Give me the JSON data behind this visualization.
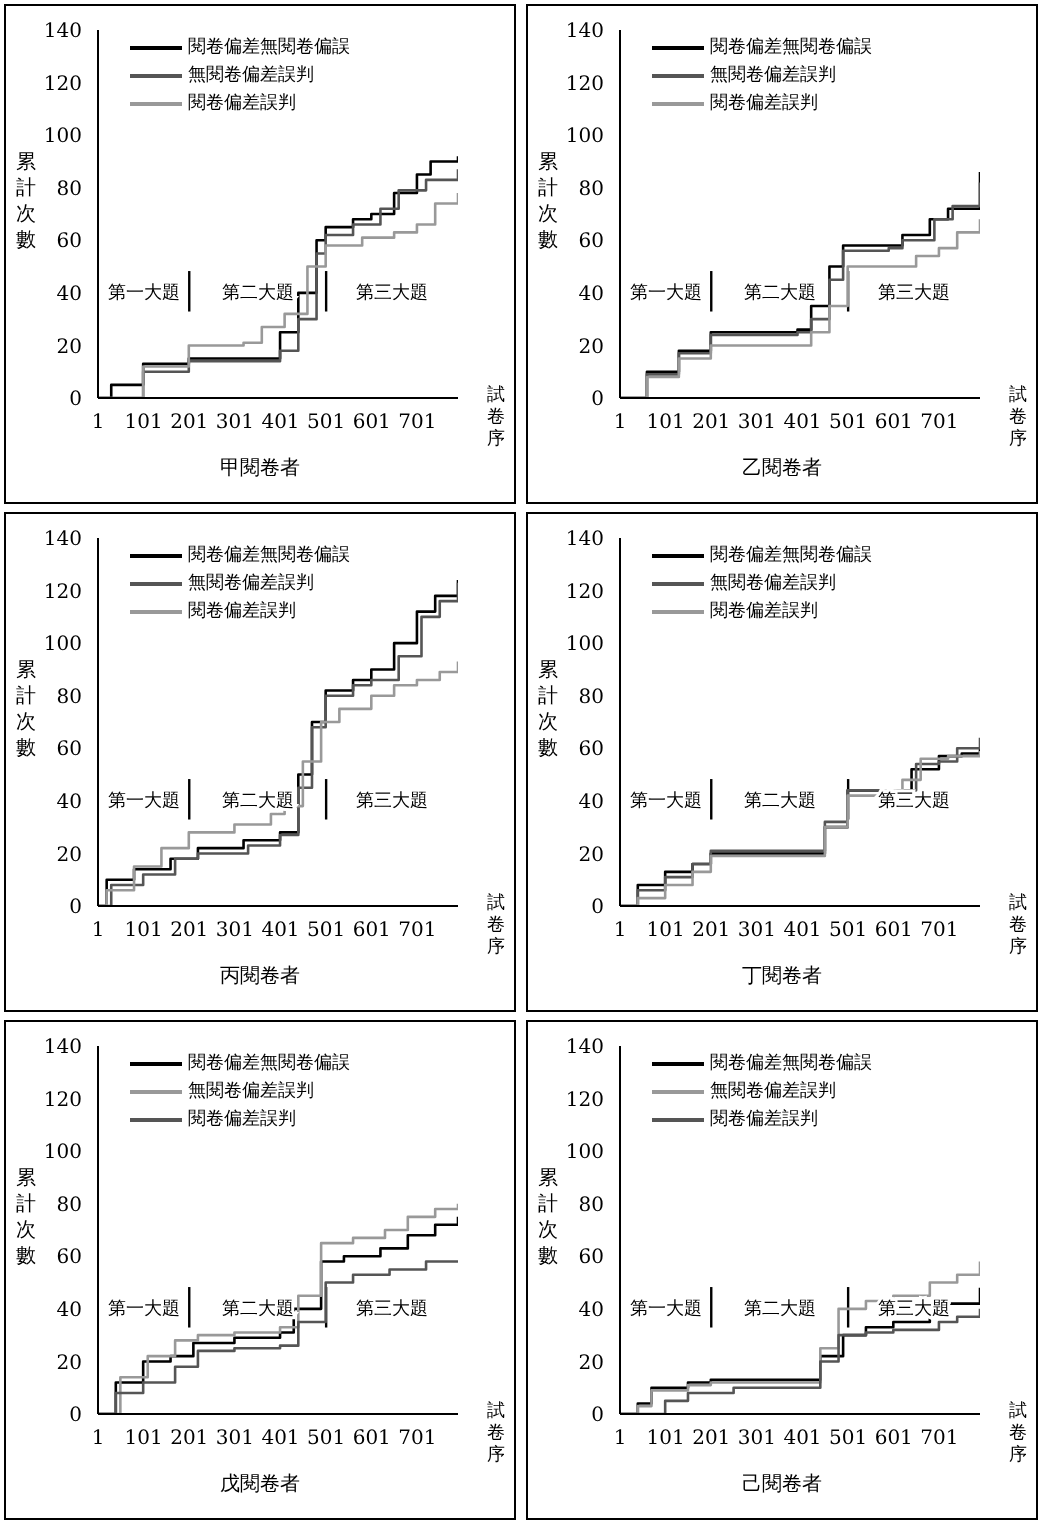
{
  "chart_data": [
    {
      "type": "step",
      "title": "甲閱卷者",
      "xlabel": "試卷序",
      "ylabel": "累計次數",
      "xlim": [
        1,
        790
      ],
      "xticks": [
        1,
        101,
        201,
        301,
        401,
        501,
        601,
        701
      ],
      "ylim": [
        0,
        140
      ],
      "yticks": [
        0,
        20,
        40,
        60,
        80,
        100,
        120,
        140
      ],
      "legend": "top left",
      "marker": "none",
      "line_style": "solid",
      "annotations": [
        "第一大題",
        "第二大題",
        "第三大題"
      ],
      "ref_lines": [
        {
          "axis": "x",
          "value": 201,
          "color": "#000000"
        },
        {
          "axis": "x",
          "value": 501,
          "color": "#000000"
        }
      ],
      "series": [
        {
          "name": "閱卷偏差無閱卷偏誤",
          "color": "#000000",
          "x": [
            1,
            30,
            100,
            200,
            320,
            400,
            440,
            480,
            500,
            560,
            600,
            650,
            700,
            730,
            790
          ],
          "values": [
            0,
            5,
            13,
            15,
            15,
            25,
            40,
            60,
            65,
            68,
            70,
            78,
            85,
            90,
            92
          ]
        },
        {
          "name": "無閱卷偏差誤判",
          "color": "#555555",
          "x": [
            1,
            100,
            200,
            300,
            400,
            440,
            480,
            500,
            560,
            620,
            660,
            720,
            790
          ],
          "values": [
            0,
            10,
            14,
            14,
            18,
            30,
            55,
            62,
            66,
            72,
            79,
            83,
            87
          ]
        },
        {
          "name": "閱卷偏差誤判",
          "color": "#999999",
          "x": [
            1,
            100,
            200,
            320,
            360,
            410,
            460,
            500,
            580,
            650,
            700,
            740,
            790
          ],
          "values": [
            0,
            12,
            20,
            21,
            27,
            32,
            50,
            58,
            61,
            63,
            66,
            74,
            78
          ]
        }
      ]
    },
    {
      "type": "step",
      "title": "乙閱卷者",
      "xlabel": "試卷序",
      "ylabel": "累計次數",
      "xlim": [
        1,
        790
      ],
      "xticks": [
        1,
        101,
        201,
        301,
        401,
        501,
        601,
        701
      ],
      "ylim": [
        0,
        140
      ],
      "yticks": [
        0,
        20,
        40,
        60,
        80,
        100,
        120,
        140
      ],
      "legend": "top left",
      "marker": "none",
      "line_style": "solid",
      "annotations": [
        "第一大題",
        "第二大題",
        "第三大題"
      ],
      "ref_lines": [
        {
          "axis": "x",
          "value": 201,
          "color": "#000000"
        },
        {
          "axis": "x",
          "value": 501,
          "color": "#000000"
        }
      ],
      "series": [
        {
          "name": "閱卷偏差無閱卷偏誤",
          "color": "#000000",
          "x": [
            1,
            60,
            130,
            200,
            300,
            390,
            420,
            460,
            490,
            590,
            620,
            680,
            720,
            790
          ],
          "values": [
            0,
            10,
            18,
            25,
            25,
            26,
            35,
            50,
            58,
            58,
            62,
            68,
            72,
            86
          ]
        },
        {
          "name": "無閱卷偏差誤判",
          "color": "#555555",
          "x": [
            1,
            60,
            130,
            200,
            300,
            390,
            420,
            460,
            490,
            590,
            620,
            690,
            730,
            790
          ],
          "values": [
            0,
            9,
            17,
            24,
            24,
            25,
            30,
            45,
            56,
            57,
            60,
            68,
            73,
            82
          ]
        },
        {
          "name": "閱卷偏差誤判",
          "color": "#999999",
          "x": [
            1,
            60,
            130,
            200,
            300,
            390,
            420,
            460,
            500,
            600,
            650,
            700,
            740,
            790
          ],
          "values": [
            0,
            8,
            15,
            20,
            20,
            20,
            25,
            35,
            50,
            50,
            54,
            57,
            63,
            68
          ]
        }
      ]
    },
    {
      "type": "step",
      "title": "丙閱卷者",
      "xlabel": "試卷序",
      "ylabel": "累計次數",
      "xlim": [
        1,
        790
      ],
      "xticks": [
        1,
        101,
        201,
        301,
        401,
        501,
        601,
        701
      ],
      "ylim": [
        0,
        140
      ],
      "yticks": [
        0,
        20,
        40,
        60,
        80,
        100,
        120,
        140
      ],
      "legend": "top left",
      "marker": "none",
      "line_style": "solid",
      "annotations": [
        "第一大題",
        "第二大題",
        "第三大題"
      ],
      "ref_lines": [
        {
          "axis": "x",
          "value": 201,
          "color": "#000000"
        },
        {
          "axis": "x",
          "value": 501,
          "color": "#000000"
        }
      ],
      "series": [
        {
          "name": "閱卷偏差無閱卷偏誤",
          "color": "#000000",
          "x": [
            1,
            20,
            80,
            160,
            220,
            320,
            400,
            440,
            470,
            500,
            560,
            600,
            650,
            700,
            740,
            790
          ],
          "values": [
            0,
            10,
            14,
            18,
            22,
            25,
            28,
            50,
            70,
            82,
            86,
            90,
            100,
            112,
            118,
            124
          ]
        },
        {
          "name": "無閱卷偏差誤判",
          "color": "#555555",
          "x": [
            1,
            30,
            100,
            170,
            220,
            330,
            400,
            440,
            470,
            500,
            560,
            600,
            660,
            710,
            750,
            790
          ],
          "values": [
            0,
            8,
            12,
            18,
            20,
            23,
            27,
            45,
            68,
            80,
            84,
            86,
            95,
            110,
            116,
            123
          ]
        },
        {
          "name": "閱卷偏差誤判",
          "color": "#999999",
          "x": [
            1,
            20,
            80,
            140,
            200,
            300,
            380,
            410,
            450,
            490,
            530,
            600,
            650,
            700,
            750,
            790
          ],
          "values": [
            0,
            6,
            15,
            22,
            28,
            31,
            35,
            38,
            55,
            70,
            75,
            80,
            84,
            86,
            89,
            93
          ]
        }
      ]
    },
    {
      "type": "step",
      "title": "丁閱卷者",
      "xlabel": "試卷序",
      "ylabel": "累計次數",
      "xlim": [
        1,
        790
      ],
      "xticks": [
        1,
        101,
        201,
        301,
        401,
        501,
        601,
        701
      ],
      "ylim": [
        0,
        140
      ],
      "yticks": [
        0,
        20,
        40,
        60,
        80,
        100,
        120,
        140
      ],
      "legend": "top left",
      "marker": "none",
      "line_style": "solid",
      "annotations": [
        "第一大題",
        "第二大題",
        "第三大題"
      ],
      "ref_lines": [
        {
          "axis": "x",
          "value": 201,
          "color": "#000000"
        },
        {
          "axis": "x",
          "value": 501,
          "color": "#000000"
        }
      ],
      "series": [
        {
          "name": "閱卷偏差無閱卷偏誤",
          "color": "#000000",
          "x": [
            1,
            40,
            100,
            160,
            200,
            400,
            450,
            500,
            580,
            640,
            700,
            750,
            790
          ],
          "values": [
            0,
            8,
            13,
            16,
            20,
            20,
            30,
            44,
            44,
            52,
            57,
            58,
            60
          ]
        },
        {
          "name": "無閱卷偏差誤判",
          "color": "#555555",
          "x": [
            1,
            40,
            100,
            160,
            200,
            400,
            450,
            500,
            600,
            650,
            700,
            740,
            790
          ],
          "values": [
            0,
            6,
            11,
            16,
            21,
            21,
            32,
            44,
            44,
            54,
            55,
            60,
            64
          ]
        },
        {
          "name": "閱卷偏差誤判",
          "color": "#999999",
          "x": [
            1,
            40,
            100,
            160,
            200,
            400,
            450,
            500,
            580,
            620,
            660,
            720,
            790
          ],
          "values": [
            0,
            3,
            8,
            13,
            19,
            19,
            30,
            42,
            44,
            48,
            56,
            57,
            59
          ]
        }
      ]
    },
    {
      "type": "step",
      "title": "戊閱卷者",
      "xlabel": "試卷序",
      "ylabel": "累計次數",
      "xlim": [
        1,
        790
      ],
      "xticks": [
        1,
        101,
        201,
        301,
        401,
        501,
        601,
        701
      ],
      "ylim": [
        0,
        140
      ],
      "yticks": [
        0,
        20,
        40,
        60,
        80,
        100,
        120,
        140
      ],
      "legend": "top left",
      "marker": "none",
      "line_style": "solid",
      "annotations": [
        "第一大題",
        "第二大題",
        "第三大題"
      ],
      "ref_lines": [
        {
          "axis": "x",
          "value": 201,
          "color": "#000000"
        },
        {
          "axis": "x",
          "value": 501,
          "color": "#000000"
        }
      ],
      "series": [
        {
          "name": "閱卷偏差無閱卷偏誤",
          "color": "#000000",
          "x": [
            1,
            40,
            100,
            160,
            210,
            300,
            400,
            430,
            490,
            540,
            620,
            680,
            740,
            790
          ],
          "values": [
            0,
            12,
            20,
            22,
            27,
            29,
            31,
            40,
            58,
            60,
            63,
            68,
            72,
            75
          ]
        },
        {
          "name": "無閱卷偏差誤判",
          "color": "#999999",
          "x": [
            1,
            50,
            110,
            170,
            220,
            300,
            400,
            440,
            490,
            560,
            630,
            680,
            740,
            790
          ],
          "values": [
            0,
            14,
            22,
            28,
            30,
            31,
            33,
            45,
            65,
            67,
            70,
            75,
            78,
            80
          ]
        },
        {
          "name": "閱卷偏差誤判",
          "color": "#555555",
          "x": [
            1,
            40,
            100,
            170,
            220,
            300,
            400,
            440,
            500,
            560,
            640,
            720,
            790
          ],
          "values": [
            0,
            8,
            12,
            18,
            24,
            25,
            26,
            35,
            50,
            53,
            55,
            58,
            58
          ]
        }
      ]
    },
    {
      "type": "step",
      "title": "己閱卷者",
      "xlabel": "試卷序",
      "ylabel": "累計次數",
      "xlim": [
        1,
        790
      ],
      "xticks": [
        1,
        101,
        201,
        301,
        401,
        501,
        601,
        701
      ],
      "ylim": [
        0,
        140
      ],
      "yticks": [
        0,
        20,
        40,
        60,
        80,
        100,
        120,
        140
      ],
      "legend": "top left",
      "marker": "none",
      "line_style": "solid",
      "annotations": [
        "第一大題",
        "第二大題",
        "第三大題"
      ],
      "ref_lines": [
        {
          "axis": "x",
          "value": 201,
          "color": "#000000"
        },
        {
          "axis": "x",
          "value": 501,
          "color": "#000000"
        }
      ],
      "series": [
        {
          "name": "閱卷偏差無閱卷偏誤",
          "color": "#000000",
          "x": [
            1,
            40,
            70,
            150,
            200,
            400,
            440,
            490,
            540,
            600,
            680,
            720,
            790
          ],
          "values": [
            0,
            4,
            10,
            12,
            13,
            13,
            22,
            30,
            33,
            35,
            38,
            42,
            48
          ]
        },
        {
          "name": "無閱卷偏差誤判",
          "color": "#999999",
          "x": [
            1,
            40,
            70,
            150,
            200,
            400,
            440,
            480,
            540,
            600,
            680,
            740,
            790
          ],
          "values": [
            0,
            3,
            9,
            11,
            12,
            12,
            25,
            40,
            43,
            45,
            50,
            53,
            58
          ]
        },
        {
          "name": "閱卷偏差誤判",
          "color": "#555555",
          "x": [
            1,
            60,
            100,
            150,
            250,
            400,
            440,
            480,
            540,
            600,
            700,
            740,
            790
          ],
          "values": [
            0,
            0,
            5,
            8,
            10,
            10,
            20,
            30,
            31,
            32,
            35,
            37,
            40
          ]
        }
      ]
    }
  ]
}
